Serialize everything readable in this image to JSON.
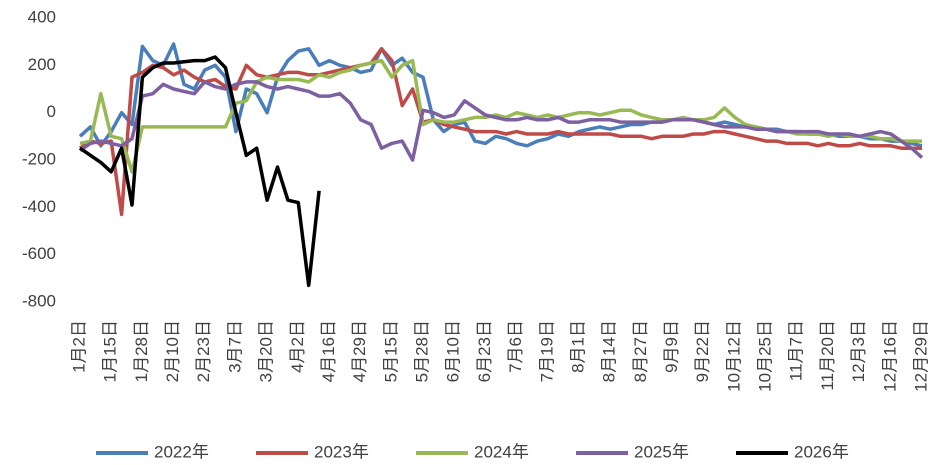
{
  "chart_data": {
    "type": "line",
    "categories": [
      "1月2日",
      null,
      null,
      "1月15日",
      null,
      null,
      "1月28日",
      null,
      null,
      "2月10日",
      null,
      null,
      "2月23日",
      null,
      null,
      "3月7日",
      null,
      null,
      "3月20日",
      null,
      null,
      "4月2日",
      null,
      null,
      "4月16日",
      null,
      null,
      "4月29日",
      null,
      null,
      "5月15日",
      null,
      null,
      "5月28日",
      null,
      null,
      "6月10日",
      null,
      null,
      "6月23日",
      null,
      null,
      "7月6日",
      null,
      null,
      "7月19日",
      null,
      null,
      "8月1日",
      null,
      null,
      "8月14日",
      null,
      null,
      "8月27日",
      null,
      null,
      "9月9日",
      null,
      null,
      "9月22日",
      null,
      null,
      "10月12日",
      null,
      null,
      "10月25日",
      null,
      null,
      "11月7日",
      null,
      null,
      "11月20日",
      null,
      null,
      "12月3日",
      null,
      null,
      "12月16日",
      null,
      null,
      "12月29日"
    ],
    "series": [
      {
        "name": "2022年",
        "color": "#4a7ebb",
        "values": [
          -100,
          -60,
          -140,
          -80,
          0,
          -50,
          280,
          220,
          200,
          290,
          120,
          100,
          180,
          200,
          150,
          -80,
          100,
          80,
          0,
          150,
          220,
          260,
          270,
          200,
          220,
          200,
          190,
          170,
          180,
          270,
          200,
          230,
          170,
          150,
          -30,
          -80,
          -50,
          -40,
          -120,
          -130,
          -100,
          -110,
          -130,
          -140,
          -120,
          -110,
          -90,
          -100,
          -80,
          -70,
          -60,
          -70,
          -60,
          -50,
          -50,
          -40,
          -40,
          -30,
          -30,
          -30,
          -40,
          -50,
          -40,
          -50,
          -60,
          -60,
          -70,
          -70,
          -80,
          -80,
          -90,
          -90,
          -90,
          -100,
          -100,
          -100,
          -110,
          -110,
          -120,
          -120,
          -130,
          -140
        ]
      },
      {
        "name": "2023年",
        "color": "#be4b48",
        "values": [
          -150,
          -120,
          -130,
          -120,
          -430,
          150,
          170,
          200,
          190,
          160,
          180,
          150,
          130,
          140,
          110,
          100,
          200,
          160,
          150,
          160,
          170,
          170,
          160,
          160,
          170,
          180,
          190,
          200,
          210,
          270,
          220,
          30,
          100,
          -40,
          -30,
          -50,
          -60,
          -70,
          -80,
          -80,
          -80,
          -90,
          -80,
          -90,
          -90,
          -90,
          -80,
          -90,
          -90,
          -90,
          -90,
          -90,
          -100,
          -100,
          -100,
          -110,
          -100,
          -100,
          -100,
          -90,
          -90,
          -80,
          -80,
          -90,
          -100,
          -110,
          -120,
          -120,
          -130,
          -130,
          -130,
          -140,
          -130,
          -140,
          -140,
          -130,
          -140,
          -140,
          -140,
          -150,
          -150,
          -150
        ]
      },
      {
        "name": "2024年",
        "color": "#98b954",
        "values": [
          -130,
          -120,
          80,
          -100,
          -110,
          -250,
          -60,
          -60,
          -60,
          -60,
          -60,
          -60,
          -60,
          -60,
          -60,
          40,
          50,
          130,
          150,
          140,
          140,
          140,
          130,
          160,
          150,
          170,
          180,
          200,
          210,
          220,
          150,
          200,
          220,
          -50,
          -30,
          -40,
          -40,
          -30,
          -20,
          -20,
          -10,
          -20,
          0,
          -10,
          -20,
          -10,
          -20,
          -10,
          0,
          0,
          -10,
          0,
          10,
          10,
          -10,
          -20,
          -30,
          -30,
          -20,
          -30,
          -30,
          -20,
          20,
          -20,
          -50,
          -60,
          -70,
          -80,
          -80,
          -90,
          -90,
          -90,
          -100,
          -90,
          -100,
          -100,
          -100,
          -110,
          -110,
          -120,
          -120,
          -120
        ]
      },
      {
        "name": "2025年",
        "color": "#7d60a0",
        "values": [
          -160,
          -130,
          -120,
          -130,
          -140,
          -110,
          70,
          80,
          120,
          100,
          90,
          80,
          130,
          110,
          100,
          120,
          130,
          130,
          110,
          100,
          110,
          100,
          90,
          70,
          70,
          80,
          40,
          -30,
          -50,
          -150,
          -130,
          -120,
          -200,
          10,
          0,
          -20,
          -10,
          50,
          20,
          -10,
          -20,
          -30,
          -30,
          -20,
          -30,
          -30,
          -20,
          -40,
          -40,
          -30,
          -30,
          -30,
          -40,
          -40,
          -40,
          -40,
          -40,
          -30,
          -30,
          -30,
          -40,
          -50,
          -60,
          -60,
          -60,
          -70,
          -70,
          -80,
          -80,
          -80,
          -80,
          -80,
          -90,
          -90,
          -90,
          -100,
          -90,
          -80,
          -90,
          -120,
          -150,
          -190
        ]
      },
      {
        "name": "2026年",
        "color": "#000000",
        "values": [
          -150,
          -180,
          -210,
          -250,
          -150,
          -390,
          150,
          190,
          210,
          210,
          215,
          220,
          220,
          235,
          190,
          0,
          -180,
          -150,
          -370,
          -230,
          -370,
          -380,
          -730,
          -330,
          null,
          null,
          null,
          null,
          null,
          null,
          null,
          null,
          null,
          null,
          null,
          null,
          null,
          null,
          null,
          null,
          null,
          null,
          null,
          null,
          null,
          null,
          null,
          null,
          null,
          null,
          null,
          null,
          null,
          null,
          null,
          null,
          null,
          null,
          null,
          null,
          null,
          null,
          null,
          null,
          null,
          null,
          null,
          null,
          null,
          null,
          null,
          null,
          null,
          null,
          null,
          null,
          null,
          null,
          null,
          null,
          null,
          null
        ]
      }
    ],
    "ylim": [
      -800,
      400
    ],
    "yticks": [
      400,
      200,
      0,
      -200,
      -400,
      -600,
      -800
    ],
    "grid": false,
    "legend": "bottom"
  }
}
